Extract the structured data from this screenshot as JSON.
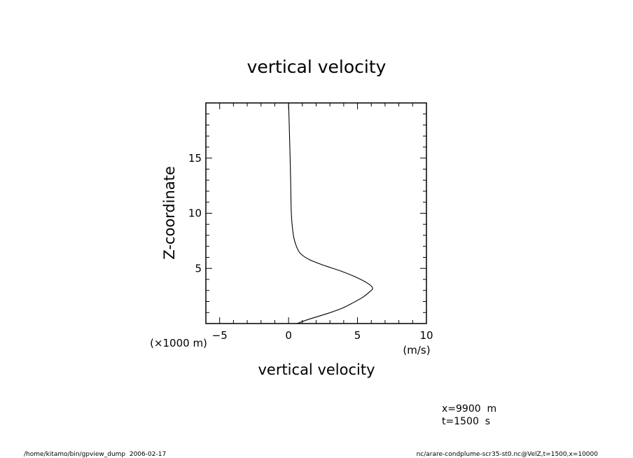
{
  "chart_data": {
    "type": "line",
    "title": "vertical velocity",
    "xlabel": "vertical velocity",
    "ylabel": "Z-coordinate",
    "x_unit": "(m/s)",
    "y_unit": "(×1000 m)",
    "xlim": [
      -6,
      10
    ],
    "ylim": [
      0,
      20
    ],
    "x_ticks": [
      -5,
      0,
      5,
      10
    ],
    "y_ticks": [
      5,
      10,
      15
    ],
    "x_tick_labels": [
      "−5",
      "0",
      "5",
      "10"
    ],
    "y_tick_labels": [
      "5",
      "10",
      "15"
    ],
    "grid": false,
    "series": [
      {
        "points": [
          [
            0.6,
            0.0
          ],
          [
            1.5,
            0.4
          ],
          [
            2.8,
            0.9
          ],
          [
            3.9,
            1.4
          ],
          [
            4.7,
            1.9
          ],
          [
            5.4,
            2.4
          ],
          [
            5.9,
            2.9
          ],
          [
            6.1,
            3.2
          ],
          [
            5.8,
            3.6
          ],
          [
            4.9,
            4.2
          ],
          [
            3.7,
            4.8
          ],
          [
            2.5,
            5.3
          ],
          [
            1.5,
            5.8
          ],
          [
            0.9,
            6.3
          ],
          [
            0.6,
            6.9
          ],
          [
            0.35,
            8.0
          ],
          [
            0.2,
            10.0
          ],
          [
            0.15,
            13.0
          ],
          [
            0.07,
            17.0
          ],
          [
            0.0,
            20.0
          ]
        ]
      }
    ]
  },
  "annotations": {
    "x_info": "x=9900  m",
    "t_info": "t=1500  s",
    "footer_left": "/home/kitamo/bin/gpview_dump  2006-02-17",
    "footer_right": "nc/arare-condplume-scr35-st0.nc@VelZ,t=1500,x=10000"
  }
}
